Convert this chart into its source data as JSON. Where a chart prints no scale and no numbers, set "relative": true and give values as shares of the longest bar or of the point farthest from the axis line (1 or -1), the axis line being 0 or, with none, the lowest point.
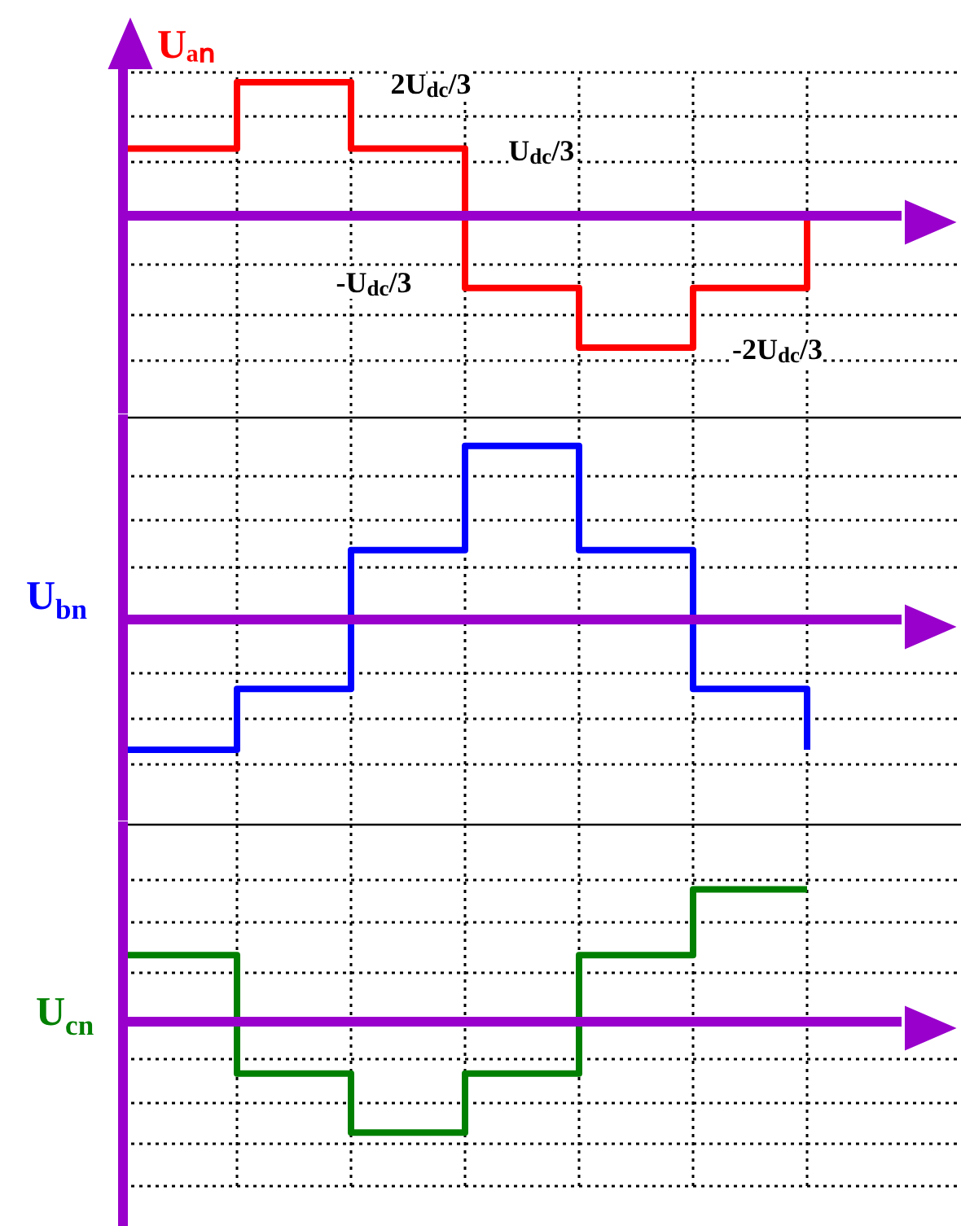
{
  "chart_data": [
    {
      "type": "step",
      "relative": true,
      "grid": true,
      "categories": [
        null,
        null,
        null,
        null,
        null,
        null,
        null
      ],
      "series": [
        {
          "name": "Uₐₙ",
          "color": "#ff0000",
          "values": [
            0.5,
            1,
            0.5,
            -0.55,
            -1,
            -0.55,
            0
          ]
        }
      ],
      "ref_lines": [
        {
          "axis": "y",
          "value": 0,
          "color": "#9900cc"
        }
      ],
      "annotations": [
        "2U$_{dc}$/3",
        "U$_{dc}$/3",
        "-U$_{dc}$/3",
        "-2U$_{dc}$/3"
      ]
    },
    {
      "type": "step",
      "relative": true,
      "grid": true,
      "categories": [
        null,
        null,
        null,
        null,
        null,
        null,
        null
      ],
      "series": [
        {
          "name": "U$_{bn}$",
          "color": "#0000ff",
          "values": [
            -0.75,
            -0.4,
            0.4,
            1,
            0.4,
            -0.4,
            -0.75
          ]
        }
      ],
      "ref_lines": [
        {
          "axis": "y",
          "value": 0,
          "color": "#9900cc"
        }
      ]
    },
    {
      "type": "step",
      "relative": true,
      "grid": true,
      "categories": [
        null,
        null,
        null,
        null,
        null,
        null,
        null
      ],
      "series": [
        {
          "name": "U$_{cn}$",
          "color": "#008000",
          "values": [
            0.5,
            -0.4,
            -0.85,
            -0.4,
            0.5,
            1,
            1
          ]
        }
      ],
      "ref_lines": [
        {
          "axis": "y",
          "value": 0,
          "color": "#9900cc"
        }
      ]
    }
  ]
}
